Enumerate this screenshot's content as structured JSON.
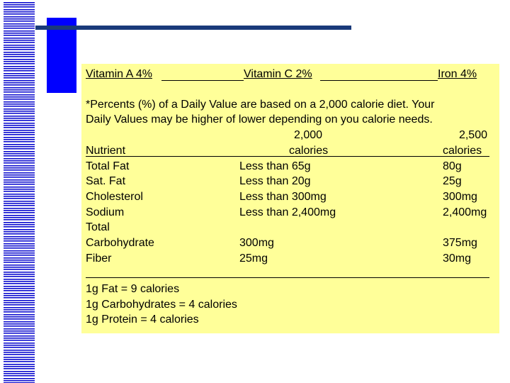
{
  "slide": {
    "vitamins": {
      "vitamin_a": "Vitamin A 4%",
      "vitamin_c": "Vitamin C 2%",
      "iron": "Iron 4%"
    },
    "footnote_line1": "*Percents (%) of a Daily Value are based on a 2,000 calorie diet. Your",
    "footnote_line2": "Daily Values may be higher of lower depending on you calorie needs.",
    "table": {
      "header": {
        "nutrient": "Nutrient",
        "col2000_top": "2,000",
        "col2000_bottom": "calories",
        "col2500_top": "2,500",
        "col2500_bottom": "calories"
      },
      "rows": [
        {
          "name": "Total Fat",
          "v2000": "Less than 65g",
          "v2500": "80g"
        },
        {
          "name": "Sat. Fat",
          "v2000": "Less than 20g",
          "v2500": "25g"
        },
        {
          "name": "Cholesterol",
          "v2000": "Less than 300mg",
          "v2500": "300mg"
        },
        {
          "name": "Sodium",
          "v2000": "Less than 2,400mg",
          "v2500": "2,400mg"
        },
        {
          "name": "Total",
          "v2000": "",
          "v2500": ""
        },
        {
          "name": "Carbohydrate",
          "v2000": "300mg",
          "v2500": "375mg"
        },
        {
          "name": "Fiber",
          "v2000": "25mg",
          "v2500": "30mg"
        }
      ]
    },
    "calories_per_gram": [
      "1g Fat = 9 calories",
      "1g Carbohydrates = 4 calories",
      "1g Protein = 4 calories"
    ]
  }
}
